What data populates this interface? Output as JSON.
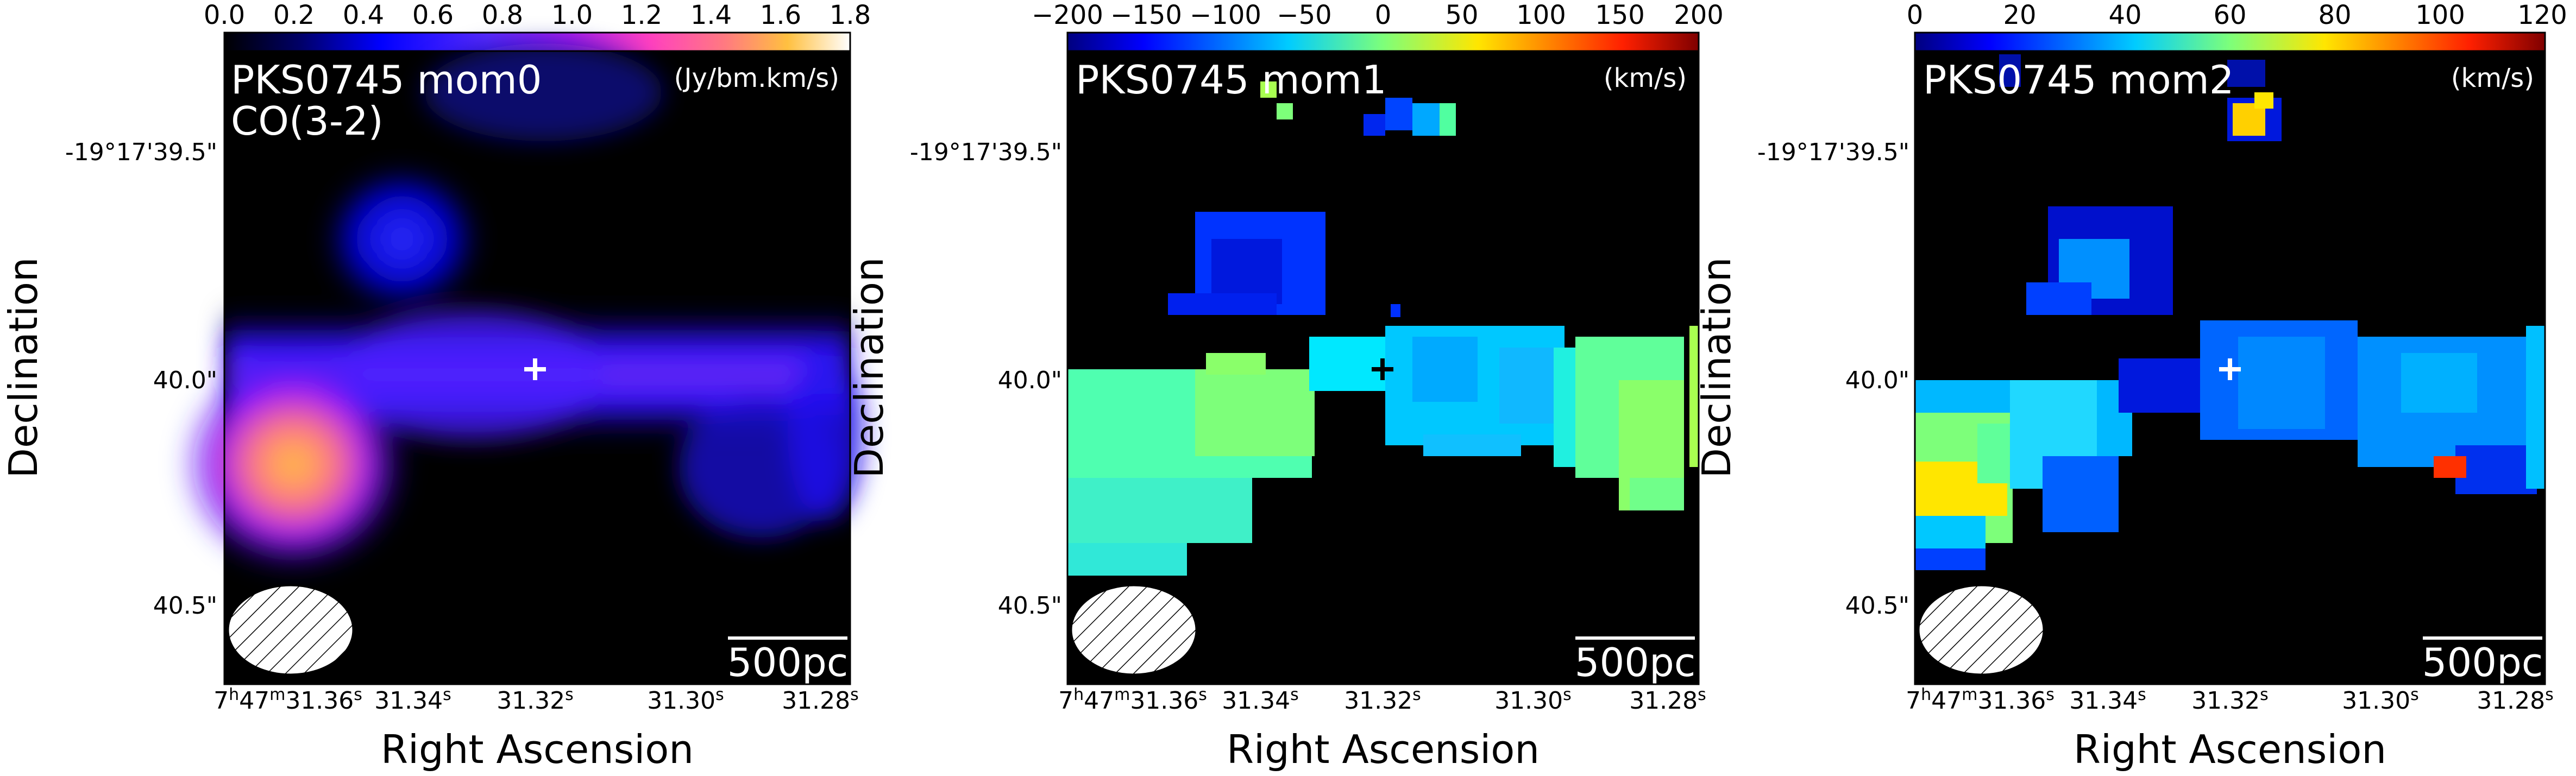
{
  "figure": {
    "panels": [
      {
        "id": "mom0",
        "title": "PKS0745 mom0",
        "subtitle": "CO(3-2)",
        "unit": "(Jy/bm.km/s)",
        "colormap": "plasma-like",
        "colorbar_ticks": [
          "0.0",
          "0.2",
          "0.4",
          "0.6",
          "0.8",
          "1.0",
          "1.2",
          "1.4",
          "1.6",
          "1.8"
        ],
        "marker_color": "#ffffff",
        "scale_bar_label": "500pc"
      },
      {
        "id": "mom1",
        "title": "PKS0745 mom1",
        "subtitle": "",
        "unit": "(km/s)",
        "colormap": "jet",
        "colorbar_ticks": [
          "−200",
          "−150",
          "−100",
          "−50",
          "0",
          "50",
          "100",
          "150",
          "200"
        ],
        "marker_color": "#000000",
        "scale_bar_label": "500pc"
      },
      {
        "id": "mom2",
        "title": "PKS0745 mom2",
        "subtitle": "",
        "unit": "(km/s)",
        "colormap": "jet",
        "colorbar_ticks": [
          "0",
          "20",
          "40",
          "60",
          "80",
          "100",
          "120"
        ],
        "marker_color": "#ffffff",
        "scale_bar_label": "500pc"
      }
    ],
    "axes": {
      "xlabel": "Right Ascension",
      "ylabel": "Declination",
      "y_ticks": [
        "-19°17'39.5\"",
        "40.0\"",
        "40.5\""
      ],
      "x_ticks": [
        {
          "main": "7",
          "sup1": "h",
          "mid": "47",
          "sup2": "m",
          "tail": "31.36",
          "sup3": "s"
        },
        {
          "main": "",
          "sup1": "",
          "mid": "",
          "sup2": "",
          "tail": "31.34",
          "sup3": "s"
        },
        {
          "main": "",
          "sup1": "",
          "mid": "",
          "sup2": "",
          "tail": "31.32",
          "sup3": "s"
        },
        {
          "main": "",
          "sup1": "",
          "mid": "",
          "sup2": "",
          "tail": "31.30",
          "sup3": "s"
        },
        {
          "main": "",
          "sup1": "",
          "mid": "",
          "sup2": "",
          "tail": "31.28",
          "sup3": "s"
        }
      ]
    }
  }
}
